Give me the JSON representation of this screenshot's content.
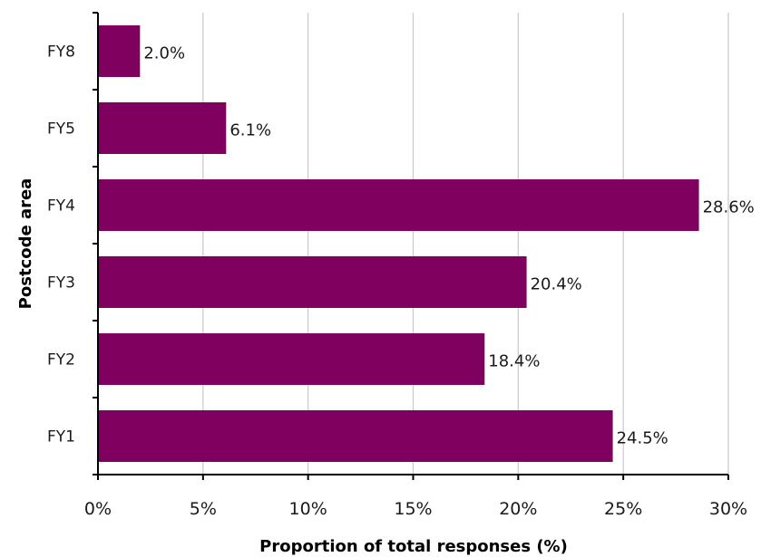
{
  "chart_data": {
    "type": "bar",
    "orientation": "horizontal",
    "categories": [
      "FY8",
      "FY5",
      "FY4",
      "FY3",
      "FY2",
      "FY1"
    ],
    "values": [
      2.0,
      6.1,
      28.6,
      20.4,
      18.4,
      24.5
    ],
    "data_labels": [
      "2.0%",
      "6.1%",
      "28.6%",
      "20.4%",
      "18.4%",
      "24.5%"
    ],
    "xlabel": "Proportion of total responses (%)",
    "ylabel": "Postcode area",
    "xlim": [
      0,
      30
    ],
    "x_ticks": [
      0,
      5,
      10,
      15,
      20,
      25,
      30
    ],
    "x_tick_labels": [
      "0%",
      "5%",
      "10%",
      "15%",
      "20%",
      "25%",
      "30%"
    ],
    "grid": "vertical",
    "legend": "none",
    "bar_color": "#800060",
    "grid_color": "#c8c8c8",
    "axis_color": "#000000"
  }
}
